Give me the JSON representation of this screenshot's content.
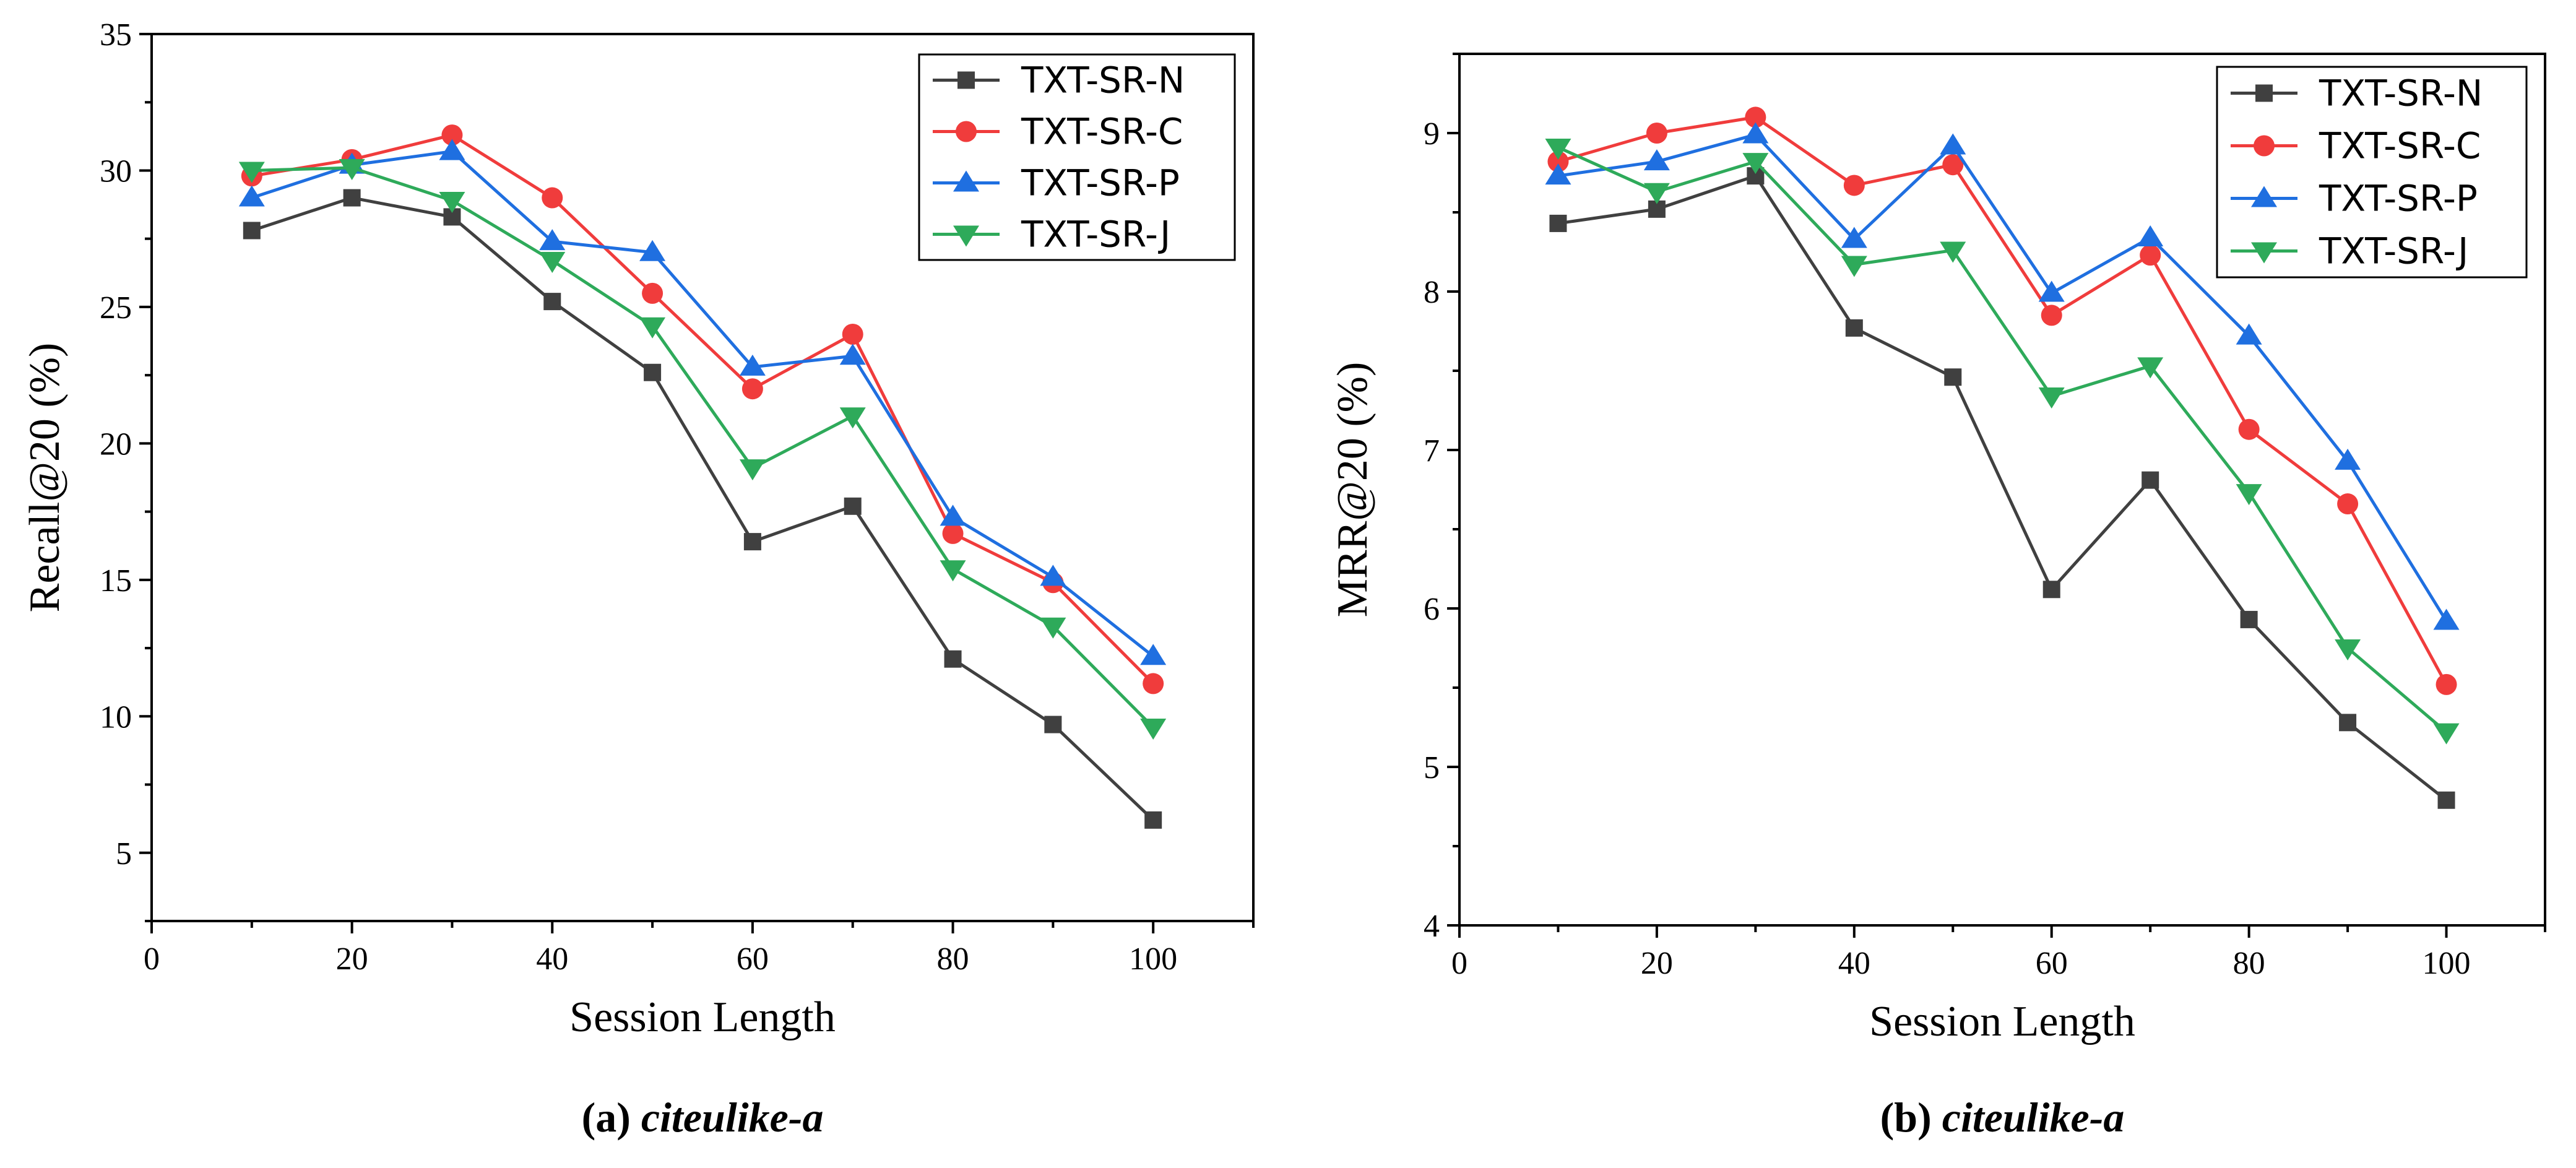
{
  "series_styles": [
    {
      "name": "TXT-SR-N",
      "color": "#404040",
      "marker": "square"
    },
    {
      "name": "TXT-SR-C",
      "color": "#f03c3c",
      "marker": "circle"
    },
    {
      "name": "TXT-SR-P",
      "color": "#1f6fe0",
      "marker": "triangle-up"
    },
    {
      "name": "TXT-SR-J",
      "color": "#2eaa5a",
      "marker": "triangle-down"
    }
  ],
  "chart_data": [
    {
      "type": "line",
      "caption": {
        "letter": "(a)",
        "name": "citeulike-a"
      },
      "xlabel": "Session Length",
      "ylabel": "Recall@20 (%)",
      "xlim": [
        0,
        110
      ],
      "ylim": [
        2.5,
        35
      ],
      "x_ticks": [
        0,
        20,
        40,
        60,
        80,
        100
      ],
      "y_ticks": [
        5,
        10,
        15,
        20,
        25,
        30,
        35
      ],
      "grid": false,
      "legend_position": "top-right",
      "x": [
        10,
        20,
        30,
        40,
        50,
        60,
        70,
        80,
        90,
        100
      ],
      "series": [
        {
          "name": "TXT-SR-N",
          "values": [
            27.8,
            29.0,
            28.3,
            25.2,
            22.6,
            16.4,
            17.7,
            12.1,
            9.7,
            6.2
          ]
        },
        {
          "name": "TXT-SR-C",
          "values": [
            29.8,
            30.4,
            31.3,
            29.0,
            25.5,
            22.0,
            24.0,
            16.7,
            14.9,
            11.2
          ]
        },
        {
          "name": "TXT-SR-P",
          "values": [
            29.0,
            30.2,
            30.7,
            27.4,
            27.0,
            22.8,
            23.2,
            17.3,
            15.1,
            12.2
          ]
        },
        {
          "name": "TXT-SR-J",
          "values": [
            30.0,
            30.1,
            28.9,
            26.7,
            24.3,
            19.1,
            21.0,
            15.4,
            13.3,
            9.6
          ]
        }
      ]
    },
    {
      "type": "line",
      "caption": {
        "letter": "(b)",
        "name": "citeulike-a"
      },
      "xlabel": "Session Length",
      "ylabel": "MRR@20 (%)",
      "xlim": [
        0,
        110
      ],
      "ylim": [
        4,
        9.5
      ],
      "x_ticks": [
        0,
        20,
        40,
        60,
        80,
        100
      ],
      "y_ticks": [
        4,
        5,
        6,
        7,
        8,
        9
      ],
      "grid": false,
      "legend_position": "top-right",
      "x": [
        10,
        20,
        30,
        40,
        50,
        60,
        70,
        80,
        90,
        100
      ],
      "series": [
        {
          "name": "TXT-SR-N",
          "values": [
            8.43,
            8.52,
            8.73,
            7.77,
            7.46,
            6.12,
            6.81,
            5.93,
            5.28,
            4.79
          ]
        },
        {
          "name": "TXT-SR-C",
          "values": [
            8.82,
            9.0,
            9.1,
            8.67,
            8.8,
            7.85,
            8.23,
            7.13,
            6.66,
            5.52
          ]
        },
        {
          "name": "TXT-SR-P",
          "values": [
            8.73,
            8.82,
            8.99,
            8.33,
            8.92,
            7.99,
            8.34,
            7.72,
            6.93,
            5.92
          ]
        },
        {
          "name": "TXT-SR-J",
          "values": [
            8.91,
            8.63,
            8.82,
            8.17,
            8.26,
            7.34,
            7.53,
            6.73,
            5.75,
            5.22
          ]
        }
      ]
    }
  ]
}
